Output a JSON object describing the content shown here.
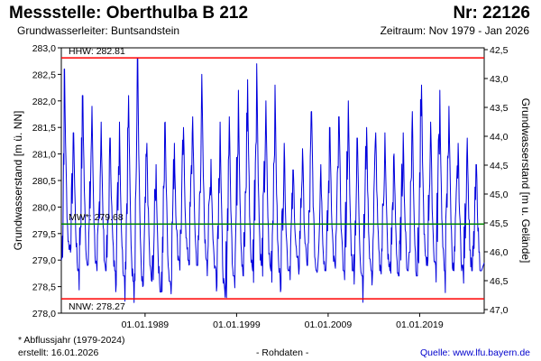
{
  "header": {
    "title": "Messstelle: Oberthulba B 212",
    "nr": "Nr: 22126",
    "aquifer": "Grundwasserleiter: Buntsandstein",
    "period": "Zeitraum: Nov 1979 - Jan 2026"
  },
  "footer": {
    "note": "* Abflussjahr (1979-2024)",
    "created": "erstellt:  16.01.2026",
    "raw": "- Rohdaten -",
    "source": "Quelle:  www.lfu.bayern.de"
  },
  "colors": {
    "series": "#0000dd",
    "hhw": "#ff0000",
    "nnw": "#ff0000",
    "mw": "#008800",
    "axis": "#000000"
  },
  "chart_data": {
    "type": "line",
    "x_start": 1979.85,
    "x_end": 2026.05,
    "ylabel": "Grundwasserstand [m ü. NN]",
    "ylabel_right": "Grundwasserstand [m u. Gelände]",
    "ylim": [
      278.0,
      283.0
    ],
    "yticks": [
      278.0,
      278.5,
      279.0,
      279.5,
      280.0,
      280.5,
      281.0,
      281.5,
      282.0,
      282.5,
      283.0
    ],
    "yticks_labels": [
      "278,0",
      "278,5",
      "279,0",
      "279,5",
      "280,0",
      "280,5",
      "281,0",
      "281,5",
      "282,0",
      "282,5",
      "283,0"
    ],
    "right_axis": {
      "ticks": [
        42.5,
        43.0,
        43.5,
        44.0,
        44.5,
        45.0,
        45.5,
        46.0,
        46.5,
        47.0
      ],
      "labels": [
        "42,5",
        "43,0",
        "43,5",
        "44,0",
        "44,5",
        "45,0",
        "45,5",
        "46,0",
        "46,5",
        "47,0"
      ]
    },
    "xticks": [
      1989.0,
      1999.0,
      2009.0,
      2019.0
    ],
    "xticks_labels": [
      "01.01.1989",
      "01.01.1999",
      "01.01.2009",
      "01.01.2019"
    ],
    "reference_lines": [
      {
        "key": "hhw",
        "label": "HHW: 282.81",
        "value": 282.81
      },
      {
        "key": "mw",
        "label": "MW*: 279.68",
        "value": 279.68
      },
      {
        "key": "nnw",
        "label": "NNW: 278.27",
        "value": 278.27
      }
    ],
    "series": [
      {
        "peaks": [
          [
            1980.2,
            282.6
          ],
          [
            1981.2,
            281.4
          ],
          [
            1982.2,
            282.1
          ],
          [
            1983.2,
            281.9
          ],
          [
            1984.2,
            281.6
          ],
          [
            1985.2,
            281.3
          ],
          [
            1986.2,
            281.6
          ],
          [
            1987.2,
            282.1
          ],
          [
            1988.2,
            282.8
          ],
          [
            1989.2,
            281.2
          ],
          [
            1990.2,
            280.8
          ],
          [
            1991.2,
            281.6
          ],
          [
            1992.2,
            281.2
          ],
          [
            1993.2,
            281.5
          ],
          [
            1994.2,
            281.7
          ],
          [
            1995.2,
            282.5
          ],
          [
            1996.2,
            280.9
          ],
          [
            1997.2,
            281.6
          ],
          [
            1998.2,
            281.7
          ],
          [
            1999.2,
            282.2
          ],
          [
            2000.2,
            282.4
          ],
          [
            2001.2,
            282.7
          ],
          [
            2002.2,
            282.0
          ],
          [
            2003.2,
            282.3
          ],
          [
            2004.2,
            281.2
          ],
          [
            2005.2,
            280.7
          ],
          [
            2006.2,
            281.1
          ],
          [
            2007.2,
            281.8
          ],
          [
            2008.2,
            280.8
          ],
          [
            2009.2,
            281.5
          ],
          [
            2010.2,
            281.7
          ],
          [
            2011.2,
            282.0
          ],
          [
            2012.2,
            281.3
          ],
          [
            2013.2,
            281.5
          ],
          [
            2014.2,
            281.4
          ],
          [
            2015.2,
            281.4
          ],
          [
            2016.2,
            281.0
          ],
          [
            2017.2,
            281.4
          ],
          [
            2018.2,
            281.8
          ],
          [
            2019.2,
            282.3
          ],
          [
            2020.2,
            281.6
          ],
          [
            2021.2,
            282.2
          ],
          [
            2022.2,
            281.9
          ],
          [
            2023.2,
            281.2
          ],
          [
            2024.2,
            281.3
          ],
          [
            2025.2,
            280.8
          ]
        ],
        "lows": [
          [
            1980.75,
            279.2
          ],
          [
            1981.75,
            278.8
          ],
          [
            1982.75,
            278.9
          ],
          [
            1983.75,
            278.8
          ],
          [
            1984.75,
            278.8
          ],
          [
            1985.75,
            278.8
          ],
          [
            1986.75,
            278.7
          ],
          [
            1987.75,
            278.6
          ],
          [
            1988.75,
            278.5
          ],
          [
            1989.75,
            278.6
          ],
          [
            1990.75,
            278.4
          ],
          [
            1991.75,
            278.6
          ],
          [
            1992.75,
            279.0
          ],
          [
            1993.75,
            279.0
          ],
          [
            1994.75,
            278.9
          ],
          [
            1995.75,
            279.0
          ],
          [
            1996.75,
            278.8
          ],
          [
            1997.75,
            278.3
          ],
          [
            1998.75,
            278.7
          ],
          [
            1999.75,
            278.7
          ],
          [
            2000.75,
            278.8
          ],
          [
            2001.75,
            278.9
          ],
          [
            2002.75,
            278.8
          ],
          [
            2003.75,
            278.7
          ],
          [
            2004.75,
            278.8
          ],
          [
            2005.75,
            278.9
          ],
          [
            2006.75,
            278.9
          ],
          [
            2007.75,
            278.8
          ],
          [
            2008.75,
            278.8
          ],
          [
            2009.75,
            278.9
          ],
          [
            2010.75,
            278.8
          ],
          [
            2011.75,
            278.8
          ],
          [
            2012.75,
            278.7
          ],
          [
            2013.75,
            278.8
          ],
          [
            2014.75,
            278.8
          ],
          [
            2015.75,
            278.8
          ],
          [
            2016.75,
            278.7
          ],
          [
            2017.75,
            278.8
          ],
          [
            2018.75,
            278.7
          ],
          [
            2019.75,
            278.9
          ],
          [
            2020.75,
            278.9
          ],
          [
            2021.75,
            278.8
          ],
          [
            2022.75,
            278.8
          ],
          [
            2023.75,
            278.8
          ],
          [
            2024.75,
            278.8
          ],
          [
            2025.75,
            278.8
          ]
        ]
      }
    ]
  }
}
